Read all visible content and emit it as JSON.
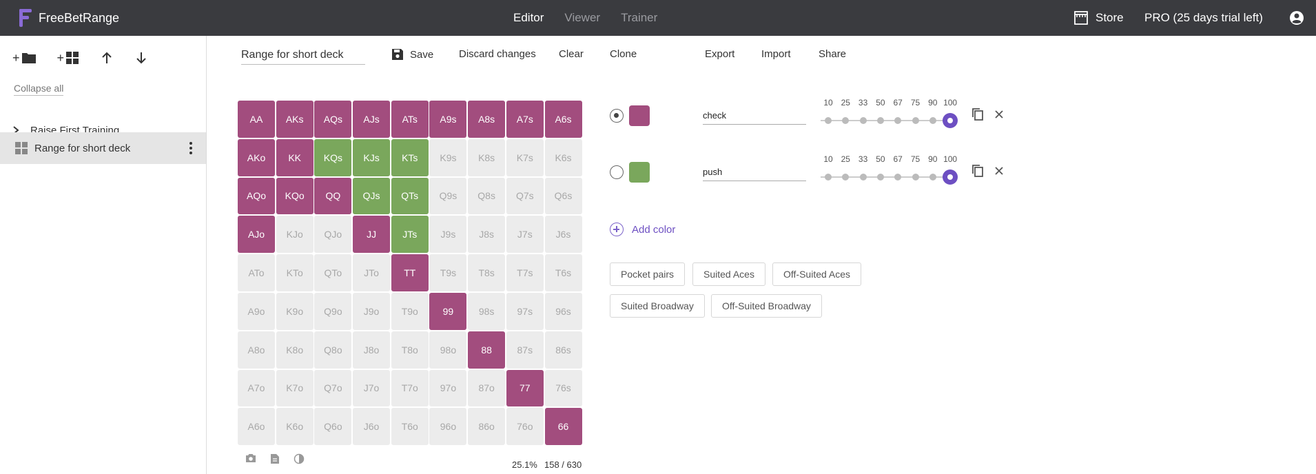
{
  "app": {
    "logo_text": "FreeBetRange"
  },
  "nav": {
    "editor": "Editor",
    "viewer": "Viewer",
    "trainer": "Trainer",
    "store": "Store",
    "pro": "PRO (25 days trial left)"
  },
  "sidebar": {
    "tools": [
      "+",
      "+"
    ],
    "collapse_all": "Collapse all",
    "items": [
      {
        "label": "Raise First Training"
      },
      {
        "label": "Range for short deck"
      }
    ]
  },
  "toolbar": {
    "range_name": "Range for short deck",
    "save": "Save",
    "discard": "Discard changes",
    "clear": "Clear",
    "clone": "Clone",
    "export": "Export",
    "import": "Import",
    "share": "Share"
  },
  "colors": {
    "c1": "#a24d7e",
    "c2": "#7aa75c",
    "accent": "#6d4fc2"
  },
  "grid": {
    "rows": [
      [
        [
          "AA",
          1
        ],
        [
          "AKs",
          1
        ],
        [
          "AQs",
          1
        ],
        [
          "AJs",
          1
        ],
        [
          "ATs",
          1
        ],
        [
          "A9s",
          1
        ],
        [
          "A8s",
          1
        ],
        [
          "A7s",
          1
        ],
        [
          "A6s",
          1
        ]
      ],
      [
        [
          "AKo",
          1
        ],
        [
          "KK",
          1
        ],
        [
          "KQs",
          2
        ],
        [
          "KJs",
          2
        ],
        [
          "KTs",
          2
        ],
        [
          "K9s",
          0
        ],
        [
          "K8s",
          0
        ],
        [
          "K7s",
          0
        ],
        [
          "K6s",
          0
        ]
      ],
      [
        [
          "AQo",
          1
        ],
        [
          "KQo",
          1
        ],
        [
          "QQ",
          1
        ],
        [
          "QJs",
          2
        ],
        [
          "QTs",
          2
        ],
        [
          "Q9s",
          0
        ],
        [
          "Q8s",
          0
        ],
        [
          "Q7s",
          0
        ],
        [
          "Q6s",
          0
        ]
      ],
      [
        [
          "AJo",
          1
        ],
        [
          "KJo",
          0
        ],
        [
          "QJo",
          0
        ],
        [
          "JJ",
          1
        ],
        [
          "JTs",
          2
        ],
        [
          "J9s",
          0
        ],
        [
          "J8s",
          0
        ],
        [
          "J7s",
          0
        ],
        [
          "J6s",
          0
        ]
      ],
      [
        [
          "ATo",
          0
        ],
        [
          "KTo",
          0
        ],
        [
          "QTo",
          0
        ],
        [
          "JTo",
          0
        ],
        [
          "TT",
          1
        ],
        [
          "T9s",
          0
        ],
        [
          "T8s",
          0
        ],
        [
          "T7s",
          0
        ],
        [
          "T6s",
          0
        ]
      ],
      [
        [
          "A9o",
          0
        ],
        [
          "K9o",
          0
        ],
        [
          "Q9o",
          0
        ],
        [
          "J9o",
          0
        ],
        [
          "T9o",
          0
        ],
        [
          "99",
          1
        ],
        [
          "98s",
          0
        ],
        [
          "97s",
          0
        ],
        [
          "96s",
          0
        ]
      ],
      [
        [
          "A8o",
          0
        ],
        [
          "K8o",
          0
        ],
        [
          "Q8o",
          0
        ],
        [
          "J8o",
          0
        ],
        [
          "T8o",
          0
        ],
        [
          "98o",
          0
        ],
        [
          "88",
          1
        ],
        [
          "87s",
          0
        ],
        [
          "86s",
          0
        ]
      ],
      [
        [
          "A7o",
          0
        ],
        [
          "K7o",
          0
        ],
        [
          "Q7o",
          0
        ],
        [
          "J7o",
          0
        ],
        [
          "T7o",
          0
        ],
        [
          "97o",
          0
        ],
        [
          "87o",
          0
        ],
        [
          "77",
          1
        ],
        [
          "76s",
          0
        ]
      ],
      [
        [
          "A6o",
          0
        ],
        [
          "K6o",
          0
        ],
        [
          "Q6o",
          0
        ],
        [
          "J6o",
          0
        ],
        [
          "T6o",
          0
        ],
        [
          "96o",
          0
        ],
        [
          "86o",
          0
        ],
        [
          "76o",
          0
        ],
        [
          "66",
          1
        ]
      ]
    ]
  },
  "stats": {
    "percent": "25.1%",
    "combos": "158 / 630"
  },
  "actions": {
    "pct_labels": [
      "10",
      "25",
      "33",
      "50",
      "67",
      "75",
      "90",
      "100"
    ],
    "rows": [
      {
        "name": "check",
        "selected": true,
        "percent": 100
      },
      {
        "name": "push",
        "selected": false,
        "percent": 100
      }
    ],
    "add_color": "Add color"
  },
  "presets": {
    "pocket_pairs": "Pocket pairs",
    "suited_aces": "Suited Aces",
    "off_suited_aces": "Off-Suited Aces",
    "suited_broadway": "Suited Broadway",
    "off_suited_broadway": "Off-Suited Broadway"
  }
}
